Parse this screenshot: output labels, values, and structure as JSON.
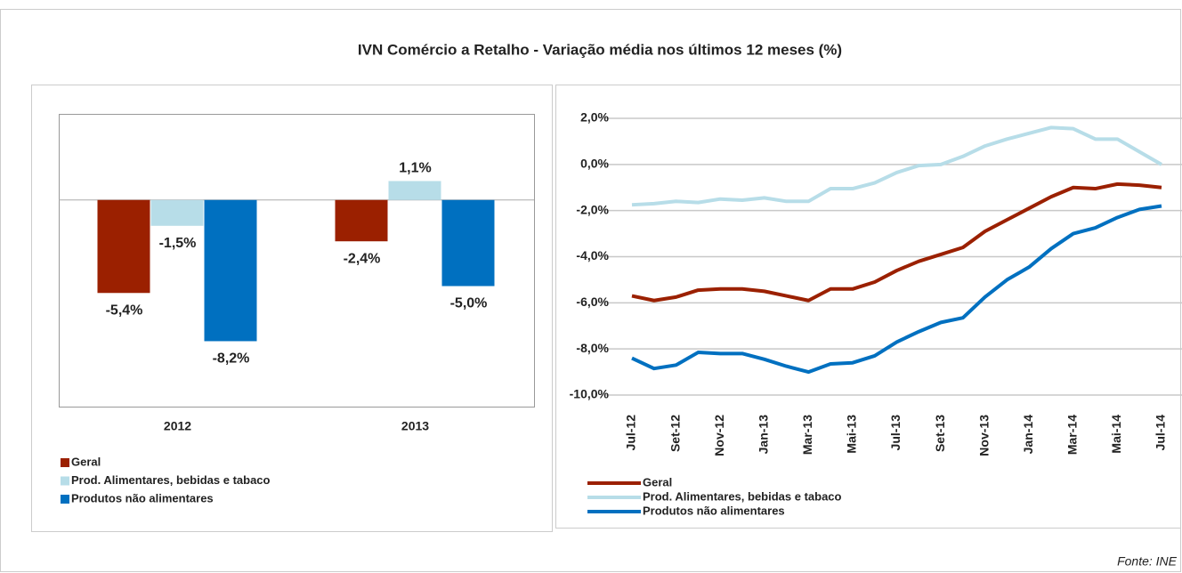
{
  "title": "IVN Comércio a Retalho - Variação média nos últimos 12 meses (%)",
  "source": "Fonte: INE",
  "chart_data": [
    {
      "type": "bar",
      "categories": [
        "2012",
        "2013"
      ],
      "ylim": [
        -12,
        5
      ],
      "series": [
        {
          "name": "Geral",
          "color": "#9b2000",
          "values": [
            -5.4,
            -2.4
          ],
          "value_labels": [
            "-5,4%",
            "-2,4%"
          ]
        },
        {
          "name": "Prod. Alimentares, bebidas e tabaco",
          "color": "#b7dde8",
          "values": [
            -1.5,
            1.1
          ],
          "value_labels": [
            "-1,5%",
            "1,1%"
          ]
        },
        {
          "name": "Produtos não alimentares",
          "color": "#0070c0",
          "values": [
            -8.2,
            -5.0
          ],
          "value_labels": [
            "-8,2%",
            "-5,0%"
          ]
        }
      ]
    },
    {
      "type": "line",
      "categories": [
        "Jul-12",
        null,
        "Set-12",
        null,
        "Nov-12",
        null,
        "Jan-13",
        null,
        "Mar-13",
        null,
        "Mai-13",
        null,
        "Jul-13",
        null,
        "Set-13",
        null,
        "Nov-13",
        null,
        "Jan-14",
        null,
        "Mar-14",
        null,
        "Mai-14",
        null,
        "Jul-14"
      ],
      "ylim": [
        -10,
        2
      ],
      "yticks": [
        {
          "value": -10,
          "label": "-10,0%"
        },
        {
          "value": -8,
          "label": "-8,0%"
        },
        {
          "value": -6,
          "label": "-6,0%"
        },
        {
          "value": -4,
          "label": "-4,0%"
        },
        {
          "value": -2,
          "label": "-2,0%"
        },
        {
          "value": 0,
          "label": "0,0%"
        },
        {
          "value": 2,
          "label": "2,0%"
        }
      ],
      "grid": true,
      "series": [
        {
          "name": "Geral",
          "color": "#9b2000",
          "values": [
            -5.7,
            -5.9,
            -5.75,
            -5.45,
            -5.4,
            -5.4,
            -5.5,
            -5.7,
            -5.9,
            -5.4,
            -5.4,
            -5.1,
            -4.6,
            -4.2,
            -3.9,
            -3.6,
            -2.9,
            -2.4,
            -1.9,
            -1.4,
            -1.0,
            -1.05,
            -0.85,
            -0.9,
            -1.0
          ]
        },
        {
          "name": "Prod. Alimentares, bebidas e tabaco",
          "color": "#b7dde8",
          "values": [
            -1.75,
            -1.7,
            -1.6,
            -1.65,
            -1.5,
            -1.55,
            -1.45,
            -1.6,
            -1.6,
            -1.05,
            -1.05,
            -0.8,
            -0.35,
            -0.05,
            0.0,
            0.35,
            0.8,
            1.1,
            1.35,
            1.6,
            1.55,
            1.1,
            1.1,
            0.55,
            0.0
          ]
        },
        {
          "name": "Produtos não alimentares",
          "color": "#0070c0",
          "values": [
            -8.4,
            -8.85,
            -8.7,
            -8.15,
            -8.2,
            -8.2,
            -8.45,
            -8.75,
            -9.0,
            -8.65,
            -8.6,
            -8.3,
            -7.7,
            -7.25,
            -6.85,
            -6.65,
            -5.75,
            -5.0,
            -4.45,
            -3.65,
            -3.0,
            -2.75,
            -2.3,
            -1.95,
            -1.8
          ]
        }
      ]
    }
  ]
}
